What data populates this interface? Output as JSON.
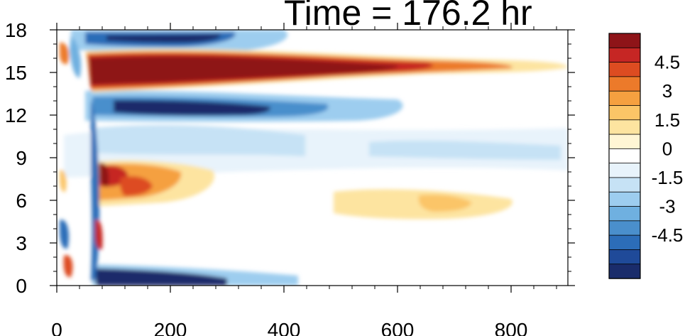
{
  "chart_data": {
    "type": "heatmap",
    "title": "Time = 176.2 hr",
    "xlabel": "",
    "ylabel": "",
    "xlim": [
      0,
      900
    ],
    "ylim": [
      0,
      18
    ],
    "x_ticks": [
      "0",
      "200",
      "400",
      "600",
      "800"
    ],
    "y_ticks": [
      "0",
      "3",
      "6",
      "9",
      "12",
      "15",
      "18"
    ],
    "colorbar": {
      "levels": [
        -5.25,
        -4.5,
        -3.75,
        -3,
        -2.25,
        -1.5,
        -0.75,
        0,
        0.75,
        1.5,
        2.25,
        3,
        3.75,
        4.5,
        5.25
      ],
      "tick_labels": [
        "4.5",
        "3",
        "1.5",
        "0",
        "-1.5",
        "-3",
        "-4.5"
      ],
      "colors": [
        "#1a2c6b",
        "#1f4a99",
        "#2c6db8",
        "#4a8fcc",
        "#6fb0e0",
        "#9dcdef",
        "#c6e2f5",
        "#e8f3fb",
        "#ffffff",
        "#fff6d5",
        "#fde4a0",
        "#fbc567",
        "#f5a040",
        "#ec7a2a",
        "#dd4c21",
        "#c62624",
        "#8e1418"
      ]
    },
    "features": [
      {
        "type": "band",
        "name": "strong positive band",
        "x": [
          60,
          790
        ],
        "y": [
          13.5,
          15.8
        ],
        "value": 5
      },
      {
        "type": "band",
        "name": "negative band below",
        "x": [
          90,
          560
        ],
        "y": [
          11.4,
          13.2
        ],
        "value": -5
      },
      {
        "type": "band",
        "name": "negative band top",
        "x": [
          90,
          350
        ],
        "y": [
          16.8,
          18
        ],
        "value": -4.5
      },
      {
        "type": "band",
        "name": "negative band bottom",
        "x": [
          60,
          420
        ],
        "y": [
          0,
          1.4
        ],
        "value": -5
      },
      {
        "type": "patch",
        "name": "positive patch",
        "x": [
          60,
          260
        ],
        "y": [
          5.5,
          8.5
        ],
        "value": 3.5
      },
      {
        "type": "patch",
        "name": "weak positive patch",
        "x": [
          500,
          700
        ],
        "y": [
          4.8,
          6.5
        ],
        "value": 1.2
      }
    ]
  }
}
